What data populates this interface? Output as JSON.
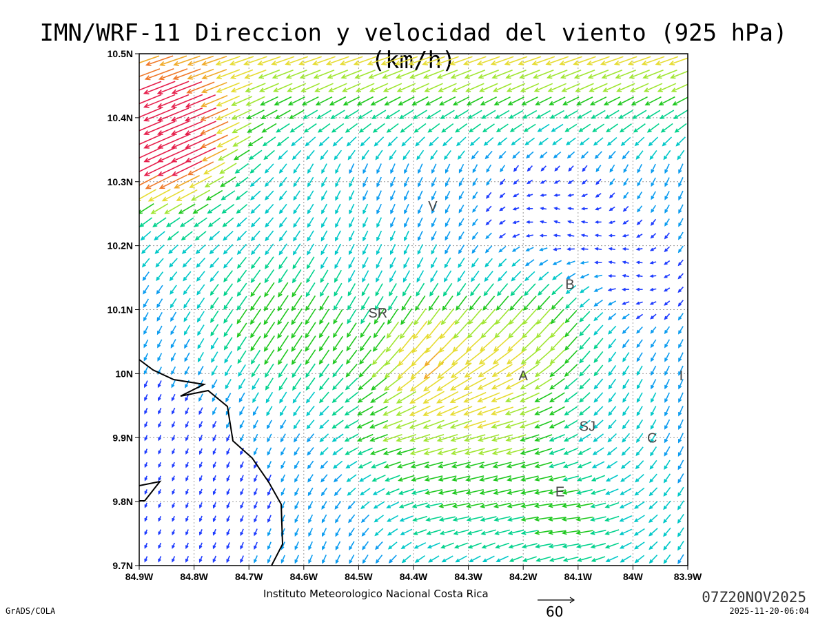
{
  "title": "IMN/WRF-11 Direccion y velocidad del viento (925 hPa)(km/h)",
  "axes": {
    "x_ticks": [
      "84.9W",
      "84.8W",
      "84.7W",
      "84.6W",
      "84.5W",
      "84.4W",
      "84.3W",
      "84.2W",
      "84.1W",
      "84W",
      "83.9W"
    ],
    "y_ticks": [
      "10.5N",
      "10.4N",
      "10.3N",
      "10.2N",
      "10.1N",
      "10N",
      "9.9N",
      "9.8N",
      "9.7N"
    ],
    "lon_range": [
      -84.9,
      -83.9
    ],
    "lat_range": [
      9.7,
      10.5
    ]
  },
  "stations": [
    {
      "label": "V",
      "lon": -84.365,
      "lat": 10.262
    },
    {
      "label": "B",
      "lon": -84.115,
      "lat": 10.14
    },
    {
      "label": "SR",
      "lon": -84.465,
      "lat": 10.095
    },
    {
      "label": "A",
      "lon": -84.2,
      "lat": 9.997
    },
    {
      "label": "I",
      "lon": -83.912,
      "lat": 9.997
    },
    {
      "label": "SJ",
      "lon": -84.083,
      "lat": 9.918
    },
    {
      "label": "C",
      "lon": -83.965,
      "lat": 9.9
    },
    {
      "label": "E",
      "lon": -84.133,
      "lat": 9.816
    }
  ],
  "legend": {
    "reference_value": "60"
  },
  "footer": {
    "institution": "Instituto Meteorologico Nacional Costa Rica",
    "valid_time": "07Z20NOV2025",
    "issued": "2025-11-20-06:04",
    "software": "GrADS/COLA"
  },
  "colors": {
    "speed_scale": [
      "#8a00d4",
      "#1e3cff",
      "#0a9cf0",
      "#00c8c8",
      "#00d28c",
      "#1ec81e",
      "#a0e632",
      "#e6dc32",
      "#f0aa28",
      "#f07828",
      "#e61e4b"
    ],
    "coast": "#000000",
    "grid": "#9a9a9a"
  }
}
